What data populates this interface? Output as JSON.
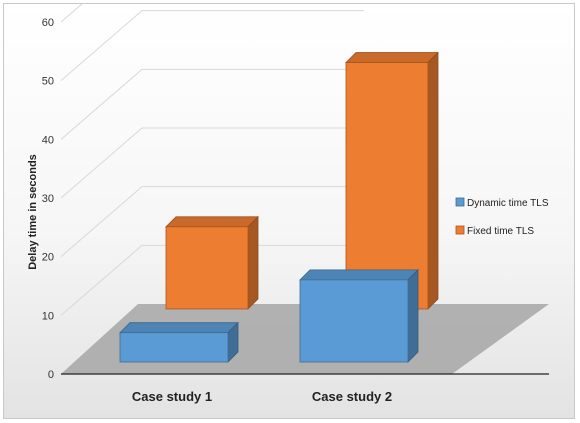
{
  "chart_data": {
    "type": "bar",
    "style": "3d-depth-columns",
    "categories": [
      "Case study 1",
      "Case study 2"
    ],
    "series": [
      {
        "name": "Dynamic time TLS",
        "values": [
          5,
          14
        ],
        "color": "#5b9bd5"
      },
      {
        "name": "Fixed time TLS",
        "values": [
          14,
          42
        ],
        "color": "#ed7d31"
      }
    ],
    "ylabel": "Delay time in seconds",
    "xlabel": "",
    "ylim": [
      0,
      60
    ],
    "yticks": [
      0,
      10,
      20,
      30,
      40,
      50,
      60
    ],
    "grid": true,
    "legend_position": "right"
  }
}
